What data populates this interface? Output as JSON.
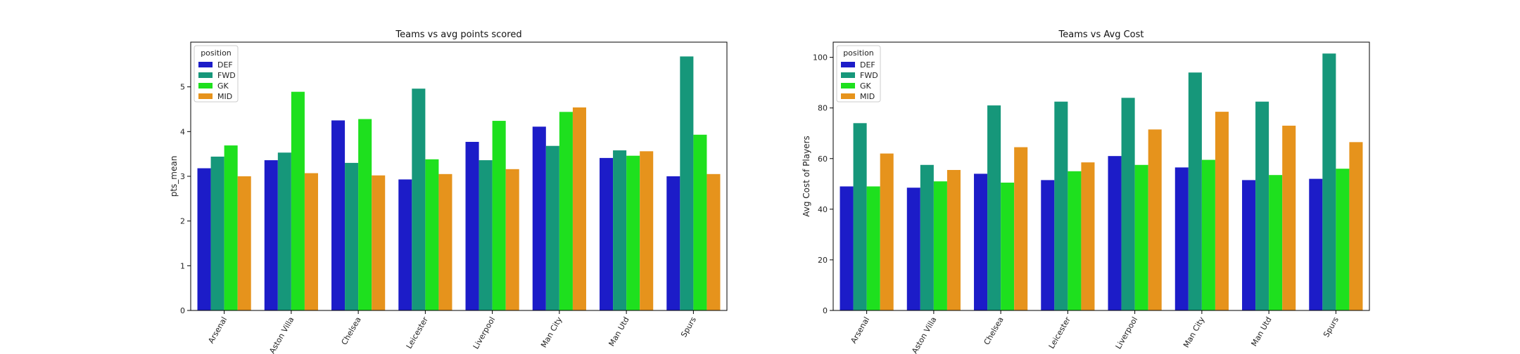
{
  "chart_data": [
    {
      "type": "bar",
      "title": "Teams vs avg points scored",
      "xlabel": "",
      "ylabel": "pts_mean",
      "ylim": [
        0,
        6
      ],
      "yticks": [
        0,
        1,
        2,
        3,
        4,
        5
      ],
      "categories": [
        "Arsenal",
        "Aston Villa",
        "Chelsea",
        "Leicester",
        "Liverpool",
        "Man City",
        "Man Utd",
        "Spurs"
      ],
      "legend": {
        "title": "position",
        "placement": "top-left"
      },
      "grid": false,
      "series": [
        {
          "name": "DEF",
          "color": "#1c1cc8",
          "values": [
            3.18,
            3.36,
            4.25,
            2.93,
            3.77,
            4.11,
            3.41,
            3.0
          ]
        },
        {
          "name": "FWD",
          "color": "#16977a",
          "values": [
            3.44,
            3.53,
            3.3,
            4.96,
            3.36,
            3.68,
            3.58,
            5.68
          ]
        },
        {
          "name": "GK",
          "color": "#1ee01e",
          "values": [
            3.69,
            4.89,
            4.28,
            3.38,
            4.24,
            4.44,
            3.46,
            3.93
          ]
        },
        {
          "name": "MID",
          "color": "#e6931c",
          "values": [
            3.0,
            3.07,
            3.02,
            3.05,
            3.16,
            4.54,
            3.56,
            3.05
          ]
        }
      ]
    },
    {
      "type": "bar",
      "title": "Teams vs Avg Cost",
      "xlabel": "",
      "ylabel": "Avg Cost of Players",
      "ylim": [
        0,
        106
      ],
      "yticks": [
        0,
        20,
        40,
        60,
        80,
        100
      ],
      "categories": [
        "Arsenal",
        "Aston Villa",
        "Chelsea",
        "Leicester",
        "Liverpool",
        "Man City",
        "Man Utd",
        "Spurs"
      ],
      "legend": {
        "title": "position",
        "placement": "top-left"
      },
      "grid": false,
      "series": [
        {
          "name": "DEF",
          "color": "#1c1cc8",
          "values": [
            49,
            48.5,
            54,
            51.5,
            61,
            56.5,
            51.5,
            52
          ]
        },
        {
          "name": "FWD",
          "color": "#16977a",
          "values": [
            74,
            57.5,
            81,
            82.5,
            84,
            94,
            82.5,
            101.5
          ]
        },
        {
          "name": "GK",
          "color": "#1ee01e",
          "values": [
            49,
            51,
            50.5,
            55,
            57.5,
            59.5,
            53.5,
            56
          ]
        },
        {
          "name": "MID",
          "color": "#e6931c",
          "values": [
            62,
            55.5,
            64.5,
            58.5,
            71.5,
            78.5,
            73,
            66.5
          ]
        }
      ]
    }
  ]
}
